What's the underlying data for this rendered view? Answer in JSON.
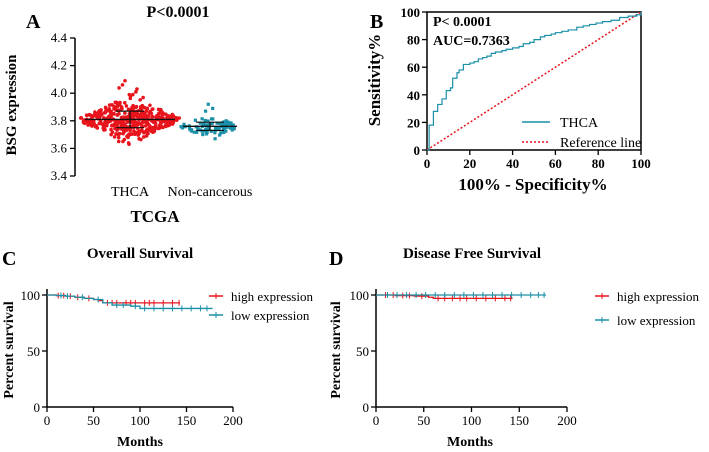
{
  "colors": {
    "red": "#e8141c",
    "teal": "#1a8fa8",
    "axis": "#000000",
    "reference": "#e8141c"
  },
  "chart_data": [
    {
      "panel": "A",
      "type": "scatter",
      "title": "P<0.0001",
      "xlabel": "TCGA",
      "ylabel": "BSG expression",
      "categories": [
        "THCA",
        "Non-cancerous"
      ],
      "ylim": [
        3.4,
        4.4
      ],
      "yticks": [
        "3.4",
        "3.6",
        "3.8",
        "4.0",
        "4.2",
        "4.4"
      ],
      "series": [
        {
          "name": "THCA",
          "color": "#e8141c",
          "n": 510,
          "mean": 3.81,
          "sd": 0.06,
          "min": 3.63,
          "max": 4.09,
          "outliers": [
            4.09,
            4.06,
            4.03,
            4.01,
            3.99,
            3.98,
            3.64,
            3.63
          ]
        },
        {
          "name": "Non-cancerous",
          "color": "#1a8fa8",
          "n": 59,
          "mean": 3.76,
          "sd": 0.03,
          "min": 3.67,
          "max": 3.92,
          "outliers": [
            3.92,
            3.89,
            3.87,
            3.67
          ]
        }
      ]
    },
    {
      "panel": "B",
      "type": "line",
      "xlabel": "100% - Specificity%",
      "ylabel": "Sensitivity%",
      "xlim": [
        0,
        100
      ],
      "ylim": [
        0,
        100
      ],
      "xticks": [
        "0",
        "20",
        "40",
        "60",
        "80",
        "100"
      ],
      "yticks": [
        "0",
        "20",
        "40",
        "60",
        "80",
        "100"
      ],
      "annotations": [
        "P< 0.0001",
        "AUC=0.7363"
      ],
      "legend": [
        "THCA",
        "Reference line"
      ],
      "series": [
        {
          "name": "THCA",
          "x": [
            0,
            1,
            1,
            3,
            3,
            5,
            5,
            7,
            7,
            9,
            9,
            11,
            12,
            12,
            14,
            15,
            17,
            17,
            20,
            22,
            24,
            26,
            28,
            30,
            32,
            35,
            37,
            40,
            43,
            45,
            48,
            50,
            53,
            55,
            58,
            60,
            63,
            66,
            70,
            73,
            76,
            79,
            82,
            86,
            90,
            94,
            98,
            100
          ],
          "y": [
            0,
            10,
            18,
            18,
            28,
            30,
            33,
            35,
            37,
            40,
            43,
            45,
            48,
            52,
            56,
            58,
            60,
            62,
            63,
            64,
            66,
            67,
            68,
            70,
            71,
            72,
            73,
            74,
            75,
            77,
            78,
            80,
            82,
            83,
            84,
            85,
            86,
            87,
            89,
            90,
            91,
            92,
            93,
            94,
            96,
            97,
            98,
            100
          ]
        },
        {
          "name": "Reference line",
          "x": [
            0,
            100
          ],
          "y": [
            0,
            100
          ]
        }
      ]
    },
    {
      "panel": "C",
      "type": "line",
      "title": "Overall Survival",
      "xlabel": "Months",
      "ylabel": "Percent survival",
      "xlim": [
        0,
        200
      ],
      "ylim": [
        0,
        100
      ],
      "xticks": [
        "0",
        "50",
        "100",
        "150",
        "200"
      ],
      "yticks": [
        "0",
        "50",
        "100"
      ],
      "legend": [
        "high expression",
        "low expression"
      ],
      "series": [
        {
          "name": "high expression",
          "x": [
            0,
            10,
            20,
            30,
            40,
            50,
            55,
            60,
            80,
            100,
            120,
            140,
            143
          ],
          "y": [
            100,
            99.5,
            99,
            98,
            97,
            96,
            95,
            93,
            93,
            93,
            93,
            93,
            93
          ],
          "censor": [
            12,
            18,
            25,
            33,
            45,
            65,
            70,
            75,
            85,
            90,
            95,
            105,
            110,
            115,
            125,
            135,
            142
          ]
        },
        {
          "name": "low expression",
          "x": [
            0,
            10,
            20,
            30,
            40,
            50,
            60,
            70,
            90,
            100,
            120,
            150,
            178
          ],
          "y": [
            100,
            99.5,
            99,
            98,
            97,
            96,
            93,
            91,
            90,
            88,
            88,
            88,
            88
          ],
          "censor": [
            15,
            22,
            38,
            55,
            75,
            82,
            95,
            105,
            115,
            125,
            135,
            145,
            155,
            165,
            172
          ]
        }
      ]
    },
    {
      "panel": "D",
      "type": "line",
      "title": "Disease Free Survival",
      "xlabel": "Months",
      "ylabel": "Percent survival",
      "xlim": [
        0,
        200
      ],
      "ylim": [
        0,
        100
      ],
      "xticks": [
        "0",
        "50",
        "100",
        "150",
        "200"
      ],
      "yticks": [
        "0",
        "50",
        "100"
      ],
      "legend": [
        "high expression",
        "low expression"
      ],
      "series": [
        {
          "name": "high expression",
          "x": [
            0,
            20,
            40,
            55,
            60,
            100,
            140,
            143
          ],
          "y": [
            100,
            99.5,
            99,
            98,
            97,
            97,
            97,
            97
          ],
          "censor": [
            10,
            18,
            28,
            35,
            48,
            65,
            72,
            80,
            88,
            95,
            105,
            115,
            125,
            135,
            141
          ]
        },
        {
          "name": "low expression",
          "x": [
            0,
            30,
            60,
            100,
            150,
            178
          ],
          "y": [
            100,
            100,
            100,
            100,
            100,
            100
          ],
          "censor": [
            12,
            22,
            32,
            42,
            52,
            62,
            72,
            82,
            92,
            102,
            112,
            122,
            132,
            142,
            152,
            162,
            170,
            176
          ]
        }
      ]
    }
  ]
}
